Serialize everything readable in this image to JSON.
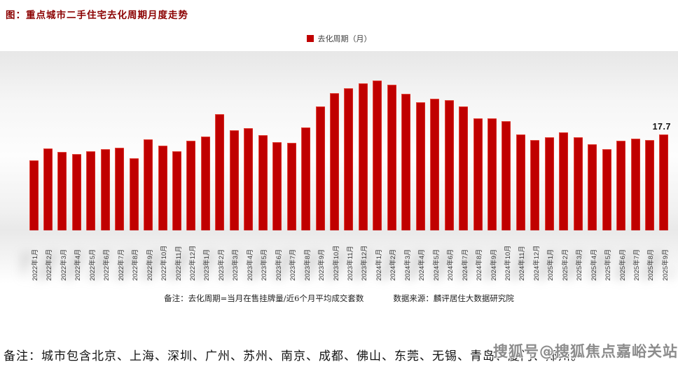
{
  "title": "图：重点城市二手住宅去化周期月度走势",
  "legend": {
    "label": "去化周期（月）",
    "color": "#C00000"
  },
  "chart_data": {
    "type": "bar",
    "title": "重点城市二手住宅去化周期月度走势",
    "series_name": "去化周期（月）",
    "categories": [
      "2022年1月",
      "2022年2月",
      "2022年3月",
      "2022年4月",
      "2022年5月",
      "2022年6月",
      "2022年7月",
      "2022年8月",
      "2022年9月",
      "2022年10月",
      "2022年11月",
      "2022年12月",
      "2023年1月",
      "2023年2月",
      "2023年3月",
      "2023年4月",
      "2023年5月",
      "2023年6月",
      "2023年7月",
      "2023年8月",
      "2023年9月",
      "2023年10月",
      "2023年11月",
      "2023年12月",
      "2024年1月",
      "2024年2月",
      "2024年3月",
      "2024年4月",
      "2024年5月",
      "2024年6月",
      "2024年7月",
      "2024年8月",
      "2024年9月",
      "2024年10月",
      "2024年11月",
      "2024年12月",
      "2025年1月",
      "2025年2月",
      "2025年3月",
      "2025年4月",
      "2025年5月",
      "2025年6月",
      "2025年7月",
      "2025年8月",
      "2025年9月"
    ],
    "values": [
      12.9,
      15.1,
      14.5,
      14.0,
      14.6,
      14.9,
      15.2,
      13.3,
      16.7,
      15.6,
      14.6,
      16.5,
      17.3,
      21.4,
      18.5,
      18.8,
      17.5,
      16.3,
      16.1,
      19.0,
      22.8,
      25.3,
      26.2,
      27.1,
      27.6,
      26.8,
      25.1,
      23.6,
      24.2,
      24.0,
      22.8,
      20.6,
      20.6,
      20.1,
      17.7,
      16.6,
      17.2,
      18.0,
      17.1,
      15.8,
      14.9,
      16.5,
      16.9,
      16.6,
      17.7
    ],
    "last_value_label": "17.7",
    "bar_color": "#C00000",
    "xlabel": "",
    "ylabel": "去化周期（月）",
    "ylim": [
      0,
      33
    ],
    "grid": false,
    "legend_position": "top-center",
    "x_tick_rotation": -90
  },
  "notes": {
    "formula_note": "备注：去化周期=当月在售挂牌量/近6个月平均成交套数",
    "source_note": "数据来源：麟评居住大数据研究院"
  },
  "footer_note": "备注：城市包含北京、上海、深圳、广州、苏州、南京、成都、佛山、东莞、无锡、青岛、厦门、郑州。",
  "watermark": "搜狐号@搜狐焦点嘉峪关站"
}
